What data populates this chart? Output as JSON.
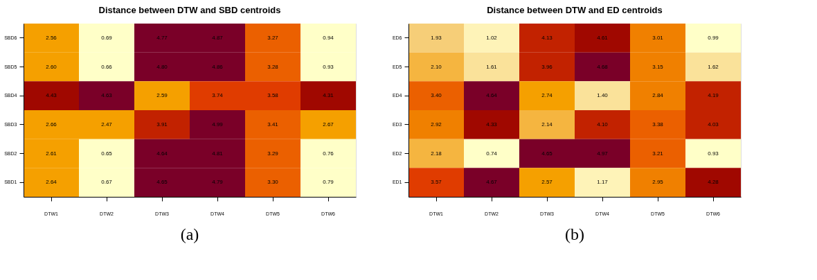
{
  "chart_data": [
    {
      "type": "heatmap",
      "title": "Distance between DTW and SBD centroids",
      "annotations": [
        "(a)"
      ],
      "colors": [
        "#FFFFC8",
        "#FEF3B8",
        "#FAE29A",
        "#F6CE78",
        "#F5B540",
        "#F5A000",
        "#F08000",
        "#EB6000",
        "#E03C00",
        "#C22200",
        "#A00800",
        "#7A0028"
      ],
      "categories": [
        "DTW1",
        "DTW2",
        "DTW3",
        "DTW4",
        "DTW5",
        "DTW6"
      ],
      "y_categories": [
        "SBD6",
        "SBD5",
        "SBD4",
        "SBD3",
        "SBD2",
        "SBD1"
      ],
      "cells": [
        [
          2.56,
          0.69,
          4.77,
          4.87,
          3.27,
          0.94
        ],
        [
          2.6,
          0.66,
          4.8,
          4.86,
          3.28,
          0.93
        ],
        [
          4.43,
          4.63,
          2.59,
          3.74,
          3.58,
          4.31
        ],
        [
          2.66,
          2.47,
          3.91,
          4.99,
          3.41,
          2.67
        ],
        [
          2.61,
          0.65,
          4.64,
          4.81,
          3.29,
          0.76
        ],
        [
          2.64,
          0.67,
          4.65,
          4.79,
          3.3,
          0.79
        ]
      ],
      "cell_labels": [
        [
          "2.56",
          "0.69",
          "4.77",
          "4.87",
          "3.27",
          "0.94"
        ],
        [
          "2.60",
          "0.66",
          "4.80",
          "4.86",
          "3.28",
          "0.93"
        ],
        [
          "4.43",
          "4.63",
          "2.59",
          "3.74",
          "3.58",
          "4.31"
        ],
        [
          "2.66",
          "2.47",
          "3.91",
          "4.99",
          "3.41",
          "2.67"
        ],
        [
          "2.61",
          "0.65",
          "4.64",
          "4.81",
          "3.29",
          "0.76"
        ],
        [
          "2.64",
          "0.67",
          "4.65",
          "4.79",
          "3.30",
          "0.79"
        ]
      ]
    },
    {
      "type": "heatmap",
      "title": "Distance between DTW and ED centroids",
      "annotations": [
        "(b)"
      ],
      "colors": [
        "#FFFFC8",
        "#FEF3B8",
        "#FAE29A",
        "#F6CE78",
        "#F5B540",
        "#F5A000",
        "#F08000",
        "#EB6000",
        "#E03C00",
        "#C22200",
        "#A00800",
        "#7A0028"
      ],
      "categories": [
        "DTW1",
        "DTW2",
        "DTW3",
        "DTW4",
        "DTW5",
        "DTW6"
      ],
      "y_categories": [
        "ED6",
        "ED5",
        "ED4",
        "ED3",
        "ED2",
        "ED1"
      ],
      "cells": [
        [
          1.93,
          1.02,
          4.13,
          4.61,
          3.01,
          0.99
        ],
        [
          2.1,
          1.61,
          3.96,
          4.68,
          3.15,
          1.62
        ],
        [
          3.4,
          4.64,
          2.74,
          1.4,
          2.84,
          4.19
        ],
        [
          2.92,
          4.33,
          2.14,
          4.1,
          3.38,
          4.03
        ],
        [
          2.18,
          0.74,
          4.65,
          4.97,
          3.21,
          0.93
        ],
        [
          3.57,
          4.67,
          2.57,
          1.17,
          2.95,
          4.28
        ]
      ],
      "cell_labels": [
        [
          "1.93",
          "1.02",
          "4.13",
          "4.61",
          "3.01",
          "0.99"
        ],
        [
          "2.10",
          "1.61",
          "3.96",
          "4.68",
          "3.15",
          "1.62"
        ],
        [
          "3.40",
          "4.64",
          "2.74",
          "1.40",
          "2.84",
          "4.19"
        ],
        [
          "2.92",
          "4.33",
          "2.14",
          "4.10",
          "3.38",
          "4.03"
        ],
        [
          "2.18",
          "0.74",
          "4.65",
          "4.97",
          "3.21",
          "0.93"
        ],
        [
          "3.57",
          "4.67",
          "2.57",
          "1.17",
          "2.95",
          "4.28"
        ]
      ]
    }
  ]
}
